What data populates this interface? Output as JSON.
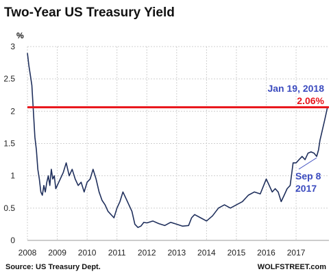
{
  "chart_data": {
    "type": "line",
    "title": "Two-Year US Treasury Yield",
    "ylabel": "%",
    "xlabel": "",
    "ylim": [
      0,
      3
    ],
    "xlim": [
      2008,
      2018.1
    ],
    "yticks": [
      "0",
      "0.5",
      "1",
      "1.5",
      "2",
      "2.5",
      "3"
    ],
    "ytick_values": [
      0,
      0.5,
      1,
      1.5,
      2,
      2.5,
      3
    ],
    "xticks": [
      "2008",
      "2009",
      "2010",
      "2011",
      "2012",
      "2013",
      "2014",
      "2015",
      "2016",
      "2017"
    ],
    "xtick_values": [
      2008,
      2009,
      2010,
      2011,
      2012,
      2013,
      2014,
      2015,
      2016,
      2017
    ],
    "grid": true,
    "series": [
      {
        "color": "#1f2f5c",
        "x": [
          2008.0,
          2008.05,
          2008.1,
          2008.15,
          2008.2,
          2008.25,
          2008.3,
          2008.35,
          2008.4,
          2008.45,
          2008.5,
          2008.55,
          2008.6,
          2008.65,
          2008.7,
          2008.75,
          2008.8,
          2008.85,
          2008.9,
          2008.95,
          2009.0,
          2009.1,
          2009.2,
          2009.3,
          2009.4,
          2009.5,
          2009.6,
          2009.7,
          2009.8,
          2009.9,
          2010.0,
          2010.1,
          2010.2,
          2010.3,
          2010.4,
          2010.5,
          2010.6,
          2010.7,
          2010.8,
          2010.9,
          2011.0,
          2011.1,
          2011.2,
          2011.3,
          2011.4,
          2011.5,
          2011.6,
          2011.7,
          2011.8,
          2011.9,
          2012.0,
          2012.2,
          2012.4,
          2012.6,
          2012.8,
          2013.0,
          2013.2,
          2013.4,
          2013.5,
          2013.6,
          2013.8,
          2014.0,
          2014.2,
          2014.4,
          2014.6,
          2014.8,
          2015.0,
          2015.2,
          2015.4,
          2015.6,
          2015.8,
          2016.0,
          2016.1,
          2016.2,
          2016.3,
          2016.4,
          2016.5,
          2016.6,
          2016.7,
          2016.8,
          2016.9,
          2017.0,
          2017.1,
          2017.2,
          2017.3,
          2017.4,
          2017.5,
          2017.6,
          2017.69,
          2017.75,
          2017.8,
          2017.85,
          2017.9,
          2017.95,
          2018.0,
          2018.05
        ],
        "y": [
          2.9,
          2.7,
          2.55,
          2.4,
          2.0,
          1.6,
          1.4,
          1.1,
          0.95,
          0.75,
          0.7,
          0.85,
          0.75,
          0.9,
          1.0,
          0.85,
          1.1,
          0.95,
          1.0,
          0.8,
          0.85,
          0.95,
          1.05,
          1.2,
          1.0,
          1.1,
          0.95,
          0.85,
          0.9,
          0.75,
          0.9,
          0.95,
          1.1,
          0.95,
          0.75,
          0.62,
          0.55,
          0.45,
          0.4,
          0.35,
          0.5,
          0.6,
          0.75,
          0.65,
          0.55,
          0.45,
          0.25,
          0.2,
          0.22,
          0.28,
          0.27,
          0.3,
          0.26,
          0.23,
          0.28,
          0.25,
          0.22,
          0.23,
          0.35,
          0.4,
          0.35,
          0.3,
          0.38,
          0.5,
          0.55,
          0.5,
          0.55,
          0.6,
          0.7,
          0.75,
          0.72,
          0.95,
          0.85,
          0.75,
          0.8,
          0.75,
          0.6,
          0.7,
          0.8,
          0.85,
          1.2,
          1.2,
          1.25,
          1.3,
          1.25,
          1.35,
          1.37,
          1.35,
          1.3,
          1.4,
          1.55,
          1.65,
          1.75,
          1.85,
          1.95,
          2.06
        ]
      }
    ],
    "reference_line": {
      "y": 2.06,
      "color": "#e8141a"
    },
    "annotations": {
      "top_date": "Jan 19, 2018",
      "top_value": "2.06%",
      "bottom_date": "Sep 8",
      "bottom_year": "2017"
    },
    "source": "Source: US Treasury Dept.",
    "credit": "WOLFSTREET.com"
  },
  "colors": {
    "line": "#1f2f5c",
    "ref": "#e8141a",
    "ann_blue": "#3b4bbf",
    "grid": "#cfcfcf"
  }
}
